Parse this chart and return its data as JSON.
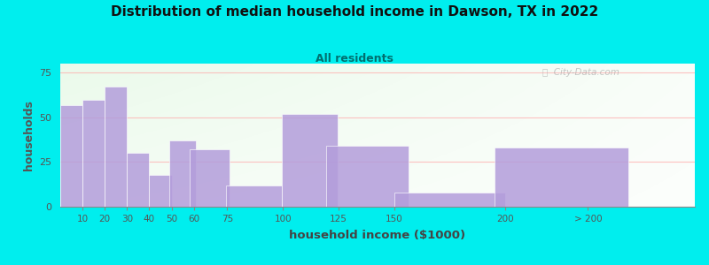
{
  "title": "Distribution of median household income in Dawson, TX in 2022",
  "subtitle": "All residents",
  "xlabel": "household income ($1000)",
  "ylabel": "households",
  "background_color": "#00EEEE",
  "bar_color": "#b39ddb",
  "bar_edge_color": "#ffffff",
  "bar_alpha": 0.85,
  "title_color": "#111111",
  "subtitle_color": "#007070",
  "axis_label_color": "#444444",
  "ylabel_color": "#555555",
  "tick_label_color": "#555555",
  "categories": [
    "10",
    "20",
    "30",
    "40",
    "50",
    "60",
    "75",
    "100",
    "125",
    "150",
    "200",
    "> 200"
  ],
  "values": [
    57,
    60,
    67,
    30,
    18,
    37,
    32,
    12,
    52,
    34,
    8,
    33
  ],
  "bar_positions": [
    5,
    15,
    25,
    35,
    45,
    55,
    67,
    87,
    112,
    138,
    175,
    225
  ],
  "bar_widths": [
    10,
    10,
    10,
    10,
    10,
    12,
    18,
    25,
    25,
    37,
    50,
    60
  ],
  "tick_positions": [
    10,
    20,
    30,
    40,
    50,
    60,
    75,
    100,
    125,
    150,
    200,
    237
  ],
  "ylim": [
    0,
    80
  ],
  "yticks": [
    0,
    25,
    50,
    75
  ],
  "xmin": 0,
  "xmax": 285,
  "watermark": "City-Data.com"
}
